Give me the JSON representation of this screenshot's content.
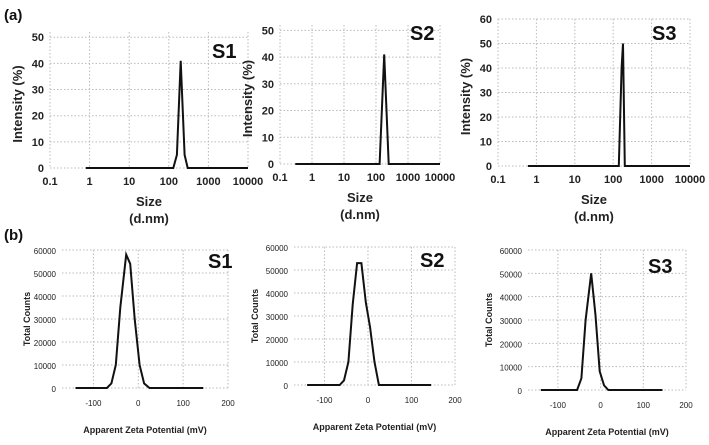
{
  "chart_data": [
    {
      "panel": "(a)",
      "type": "line",
      "sample": "S1",
      "xscale": "log",
      "xlabel": "Size",
      "xunit": "(d.nm)",
      "ylabel": "Intensity (%)",
      "xticks": [
        "0.1",
        "1",
        "10",
        "100",
        "1000",
        "10000"
      ],
      "yticks": [
        "0",
        "10",
        "20",
        "30",
        "40",
        "50"
      ],
      "xlim": [
        0.1,
        10000
      ],
      "ylim": [
        0,
        52
      ],
      "x": [
        0.8,
        130,
        160,
        200,
        250,
        300,
        10000
      ],
      "y": [
        0,
        0,
        5,
        41,
        5,
        0,
        0
      ]
    },
    {
      "panel": "",
      "type": "line",
      "sample": "S2",
      "xscale": "log",
      "xlabel": "Size",
      "xunit": "(d.nm)",
      "ylabel": "Intensity (%)",
      "xticks": [
        "0.1",
        "1",
        "10",
        "100",
        "1000",
        "10000"
      ],
      "yticks": [
        "0",
        "10",
        "20",
        "30",
        "40",
        "50"
      ],
      "xlim": [
        0.1,
        10000
      ],
      "ylim": [
        0,
        52
      ],
      "x": [
        0.3,
        130,
        180,
        250,
        10000
      ],
      "y": [
        0,
        0,
        41,
        0,
        0
      ]
    },
    {
      "panel": "",
      "type": "line",
      "sample": "S3",
      "xscale": "log",
      "xlabel": "Size",
      "xunit": "(d.nm)",
      "ylabel": "Intensity (%)",
      "xticks": [
        "0.1",
        "1",
        "10",
        "100",
        "1000",
        "10000"
      ],
      "yticks": [
        "0",
        "10",
        "20",
        "30",
        "40",
        "50",
        "60"
      ],
      "xlim": [
        0.1,
        10000
      ],
      "ylim": [
        0,
        60
      ],
      "x": [
        0.6,
        140,
        165,
        180,
        200,
        10000
      ],
      "y": [
        0,
        0,
        40,
        50,
        0,
        0
      ]
    },
    {
      "panel": "(b)",
      "type": "line",
      "sample": "S1",
      "xscale": "linear",
      "xlabel": "Apparent Zeta Potential (mV)",
      "xunit": "",
      "ylabel": "Total Counts",
      "xticks": [
        "-100",
        "0",
        "100",
        "200"
      ],
      "yticks": [
        "0",
        "10000",
        "20000",
        "30000",
        "40000",
        "50000",
        "60000"
      ],
      "xlim": [
        -170,
        200
      ],
      "ylim": [
        0,
        60000
      ],
      "x": [
        -140,
        -70,
        -60,
        -50,
        -40,
        -27,
        -18,
        -8,
        3,
        13,
        25,
        145
      ],
      "y": [
        0,
        0,
        2000,
        10000,
        35000,
        58000,
        54000,
        30000,
        10000,
        2000,
        0,
        0
      ]
    },
    {
      "panel": "",
      "type": "line",
      "sample": "S2",
      "xscale": "linear",
      "xlabel": "Apparent Zeta Potential (mV)",
      "xunit": "",
      "ylabel": "Total Counts",
      "xticks": [
        "-100",
        "0",
        "100",
        "200"
      ],
      "yticks": [
        "0",
        "10000",
        "20000",
        "30000",
        "40000",
        "50000",
        "60000"
      ],
      "xlim": [
        -170,
        200
      ],
      "ylim": [
        0,
        60000
      ],
      "x": [
        -140,
        -65,
        -55,
        -45,
        -35,
        -25,
        -15,
        -5,
        5,
        15,
        25,
        145
      ],
      "y": [
        0,
        0,
        2000,
        10000,
        35000,
        53000,
        53000,
        36000,
        25000,
        10000,
        0,
        0
      ]
    },
    {
      "panel": "",
      "type": "line",
      "sample": "S3",
      "xscale": "linear",
      "xlabel": "Apparent Zeta Potential (mV)",
      "xunit": "",
      "ylabel": "Total Counts",
      "xticks": [
        "-100",
        "0",
        "100",
        "200"
      ],
      "yticks": [
        "0",
        "10000",
        "20000",
        "30000",
        "40000",
        "50000",
        "60000"
      ],
      "xlim": [
        -170,
        200
      ],
      "ylim": [
        0,
        60000
      ],
      "x": [
        -140,
        -55,
        -45,
        -35,
        -22,
        -12,
        -2,
        8,
        18,
        145
      ],
      "y": [
        0,
        0,
        5000,
        30000,
        50000,
        32000,
        8000,
        2000,
        0,
        0
      ]
    }
  ]
}
